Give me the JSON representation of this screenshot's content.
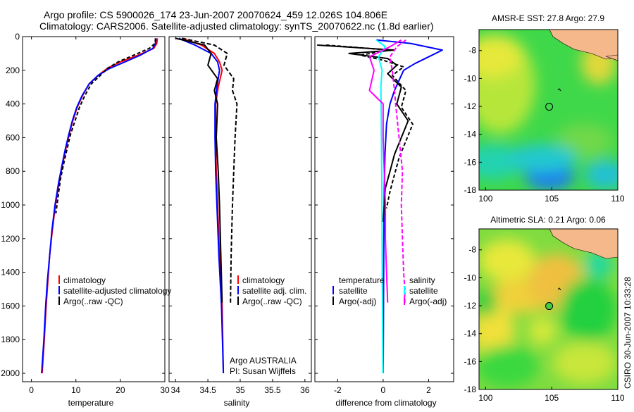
{
  "header": {
    "line1": "Argo profile: CS 5900026_174 23-Jun-2007 20070624_459 12.026S 104.806E",
    "line2": "Climatology: CARS2006. Satellite-adjusted climatology: synTS_20070622.nc (1.8d earlier)"
  },
  "side_label": "CSIRO 30-Jun-2007 10:33:28",
  "colors": {
    "climatology": "#ff0000",
    "satellite": "#0000ff",
    "argo": "#000000",
    "salinity_diff": "#ff00ff",
    "salinity_sat": "#00ffff",
    "land": "#f5b88a"
  },
  "chart_data": [
    {
      "type": "line",
      "xlabel": "temperature",
      "ylabel": "",
      "xlim": [
        -2,
        30
      ],
      "ylim": [
        2050,
        0
      ],
      "xticks": [
        0,
        10,
        20,
        30
      ],
      "yticks": [
        0,
        200,
        400,
        600,
        800,
        1000,
        1200,
        1400,
        1600,
        1800,
        2000
      ],
      "legend": {
        "placement": "bottom-right",
        "entries": [
          "climatology",
          "satellite-adjusted climatology",
          "Argo(..raw -QC)"
        ]
      },
      "series": [
        {
          "name": "climatology",
          "color": "#ff0000",
          "x": [
            28.3,
            28.2,
            27.5,
            24,
            20,
            17,
            15,
            13,
            11.5,
            10.3,
            9.3,
            8.5,
            7.7,
            7,
            6.2,
            5.4,
            4.7,
            4.1,
            3.7,
            3.3,
            2.9,
            2.4
          ],
          "y": [
            10,
            40,
            70,
            110,
            150,
            190,
            230,
            280,
            350,
            420,
            500,
            580,
            670,
            760,
            870,
            1000,
            1150,
            1300,
            1450,
            1600,
            1800,
            2000
          ]
        },
        {
          "name": "satellite-adjusted climatology",
          "color": "#0000ff",
          "x": [
            28,
            27.9,
            27.3,
            24.5,
            21,
            17.5,
            15,
            13,
            11.4,
            10.2,
            9.2,
            8.4,
            7.6,
            6.9,
            6.1,
            5.3,
            4.6,
            4.1,
            3.6,
            3.2,
            2.8,
            2.3
          ],
          "y": [
            10,
            40,
            70,
            110,
            150,
            190,
            230,
            280,
            350,
            420,
            500,
            580,
            670,
            760,
            870,
            1000,
            1150,
            1300,
            1450,
            1600,
            1800,
            2000
          ]
        },
        {
          "name": "Argo(..raw -QC)",
          "color": "#000000",
          "dash": "5,3",
          "x": [
            27.9,
            27.8,
            26.5,
            23,
            19.5,
            17,
            15.5,
            13.5,
            12,
            10.8,
            9.8,
            8.8,
            8,
            7.2,
            6.5,
            6,
            5.5
          ],
          "y": [
            10,
            40,
            70,
            110,
            150,
            190,
            230,
            280,
            350,
            420,
            500,
            580,
            670,
            760,
            850,
            950,
            1050
          ]
        }
      ]
    },
    {
      "type": "line",
      "xlabel": "salinity",
      "ylabel": "",
      "xlim": [
        33.9,
        36.1
      ],
      "ylim": [
        2050,
        0
      ],
      "xticks": [
        34,
        34.5,
        35,
        35.5,
        36
      ],
      "xtick_labels": [
        "34",
        "34.5",
        "35",
        "35.5",
        "36"
      ],
      "legend": {
        "placement": "bottom-right",
        "entries": [
          "climatology",
          "satellite adj. clim.",
          "Argo(..raw -QC)"
        ]
      },
      "annotation": [
        "Argo AUSTRALIA",
        "PI: Susan Wijffels"
      ],
      "series": [
        {
          "name": "climatology",
          "color": "#ff0000",
          "x": [
            34.1,
            34.4,
            34.6,
            34.68,
            34.72,
            34.66,
            34.62,
            34.62,
            34.63,
            34.65,
            34.68,
            34.72,
            34.74
          ],
          "y": [
            10,
            50,
            100,
            150,
            200,
            300,
            400,
            600,
            800,
            1000,
            1300,
            1600,
            2000
          ]
        },
        {
          "name": "satellite adj. clim.",
          "color": "#0000ff",
          "x": [
            34.05,
            34.3,
            34.55,
            34.65,
            34.68,
            34.64,
            34.61,
            34.61,
            34.62,
            34.64,
            34.67,
            34.71,
            34.74
          ],
          "y": [
            10,
            50,
            100,
            150,
            200,
            300,
            400,
            600,
            800,
            1000,
            1300,
            1600,
            2000
          ]
        },
        {
          "name": "Argo(..raw -QC)",
          "color": "#000000",
          "x": [
            34.0,
            34.45,
            34.55,
            34.5,
            34.65,
            34.6,
            34.65,
            34.63,
            34.66,
            34.68,
            34.7,
            34.72
          ],
          "y": [
            10,
            50,
            100,
            170,
            250,
            320,
            400,
            600,
            800,
            1000,
            1300,
            1580
          ]
        },
        {
          "name": "Argo(..raw -QC) dashed",
          "color": "#000000",
          "dash": "6,3",
          "x": [
            34.1,
            34.6,
            34.8,
            34.75,
            34.9,
            34.88,
            34.95,
            34.92,
            34.9,
            34.88,
            34.86,
            34.85
          ],
          "y": [
            10,
            50,
            100,
            170,
            250,
            320,
            400,
            600,
            800,
            1000,
            1300,
            1580
          ]
        }
      ]
    },
    {
      "type": "line",
      "xlabel": "difference from climatology",
      "ylabel": "",
      "xlim": [
        -3,
        3.1
      ],
      "ylim": [
        2050,
        0
      ],
      "xticks": [
        -2,
        0,
        2
      ],
      "legend": {
        "placement": "bottom",
        "left_heading": "temperature",
        "right_heading": "salinity",
        "left_entries": [
          "satellite",
          "Argo(-adj)"
        ],
        "right_entries": [
          "satellite",
          "Argo(-adj)"
        ]
      },
      "series": [
        {
          "name": "temperature satellite",
          "color": "#0000ff",
          "x": [
            -0.3,
            1.2,
            2.6,
            2.0,
            1.4,
            0.9,
            0.7,
            0.5,
            0.3,
            0.15,
            0.08,
            0.05,
            0.03,
            0.02,
            0.01,
            0.0
          ],
          "y": [
            20,
            40,
            80,
            120,
            160,
            200,
            260,
            320,
            400,
            520,
            700,
            900,
            1200,
            1500,
            1800,
            2000
          ]
        },
        {
          "name": "temperature Argo(-adj)",
          "color": "#000000",
          "x": [
            -2.9,
            0.5,
            -1.5,
            0.2,
            0.6,
            0.2,
            0.8,
            0.6,
            1.1,
            0.8,
            0.5,
            0.3,
            0.1,
            0.05,
            0.0
          ],
          "y": [
            50,
            80,
            100,
            130,
            170,
            220,
            300,
            400,
            500,
            600,
            700,
            800,
            900,
            1000,
            1100
          ]
        },
        {
          "name": "temperature Argo(-adj) dashed",
          "color": "#000000",
          "dash": "5,3",
          "x": [
            -2.5,
            0.3,
            -1.0,
            0.0,
            0.9,
            0.4,
            1.0,
            0.8,
            1.3,
            1.0,
            0.7,
            0.5,
            0.3,
            0.15
          ],
          "y": [
            50,
            80,
            110,
            140,
            180,
            230,
            320,
            420,
            520,
            620,
            720,
            820,
            920,
            1020
          ]
        },
        {
          "name": "salinity satellite",
          "color": "#00ffff",
          "x": [
            -0.3,
            0.1,
            -0.2,
            -0.05,
            -0.1,
            -0.08,
            -0.06,
            -0.05,
            -0.04,
            -0.03,
            -0.02,
            -0.01
          ],
          "y": [
            20,
            60,
            120,
            200,
            300,
            500,
            800,
            1100,
            1400,
            1600,
            1800,
            2000
          ]
        },
        {
          "name": "salinity Argo(-adj)",
          "color": "#ff00ff",
          "x": [
            0.8,
            0.3,
            -0.6,
            -0.4,
            -0.6,
            0.0,
            0.0,
            0.05,
            0.1,
            0.1,
            0.15,
            0.2
          ],
          "y": [
            20,
            60,
            120,
            200,
            320,
            400,
            600,
            800,
            1000,
            1200,
            1400,
            1580
          ]
        },
        {
          "name": "salinity Argo(-adj) dashed",
          "color": "#ff00ff",
          "dash": "6,3",
          "x": [
            1.0,
            0.6,
            0.3,
            0.4,
            0.5,
            0.55,
            0.7,
            0.85,
            0.8,
            0.85,
            0.9,
            0.95,
            0.95
          ],
          "y": [
            20,
            60,
            120,
            200,
            320,
            400,
            600,
            800,
            1000,
            1200,
            1400,
            1500,
            1580
          ]
        }
      ]
    },
    {
      "type": "heatmap",
      "title": "AMSR-E SST: 27.8 Argo: 27.9",
      "xlim": [
        99.5,
        110
      ],
      "ylim": [
        -18,
        -6.5
      ],
      "xticks": [
        100,
        105,
        110
      ],
      "yticks": [
        -8,
        -10,
        -12,
        -14,
        -16,
        -18
      ],
      "marker": {
        "x": 104.806,
        "y": -12.026,
        "fill": "none"
      }
    },
    {
      "type": "heatmap",
      "title": "Altimetric SLA: 0.21 Argo: 0.06",
      "xlim": [
        99.5,
        110
      ],
      "ylim": [
        -18,
        -6.5
      ],
      "xticks": [
        100,
        105,
        110
      ],
      "yticks": [
        -8,
        -10,
        -12,
        -14,
        -16,
        -18
      ],
      "marker": {
        "x": 104.806,
        "y": -12.026,
        "fill": "#44cc44"
      }
    }
  ]
}
